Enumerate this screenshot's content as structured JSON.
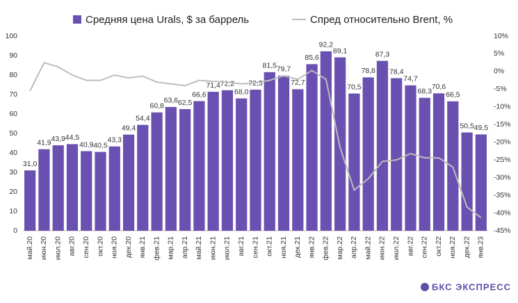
{
  "chart_data": {
    "type": "bar",
    "brand": "БКС ЭКСПРЕСС",
    "categories": [
      "май.20",
      "июн.20",
      "июл.20",
      "авг.20",
      "сен.20",
      "окт.20",
      "ноя.20",
      "дек.20",
      "янв.21",
      "фев.21",
      "мар.21",
      "апр.21",
      "май.21",
      "июн.21",
      "июл.21",
      "авг.21",
      "сен.21",
      "окт.21",
      "ноя.21",
      "дек.21",
      "янв.22",
      "фев.22",
      "мар.22",
      "апр.22",
      "май.22",
      "июн.22",
      "июл.22",
      "авг.22",
      "сен.22",
      "окт.22",
      "ноя.22",
      "дек.22",
      "янв.23"
    ],
    "series": [
      {
        "name": "Средняя цена Urals, $ за баррель",
        "type": "bar",
        "color": "#6a50b0",
        "values": [
          31.0,
          41.9,
          43.9,
          44.5,
          40.9,
          40.5,
          43.3,
          49.4,
          54.4,
          60.8,
          63.6,
          62.5,
          66.6,
          71.4,
          72.2,
          68.0,
          72.5,
          81.5,
          79.7,
          72.7,
          85.6,
          92.2,
          89.1,
          70.5,
          78.8,
          87.3,
          78.4,
          74.7,
          68.3,
          70.6,
          66.5,
          50.5,
          49.5
        ],
        "value_labels": [
          "31,0",
          "41,9",
          "43,9",
          "44,5",
          "40,9",
          "40,5",
          "43,3",
          "49,4",
          "54,4",
          "60,8",
          "63,6",
          "62,5",
          "66,6",
          "71,4",
          "72,2",
          "68,0",
          "72,5",
          "81,5",
          "79,7",
          "72,7",
          "85,6",
          "92,2",
          "89,1",
          "70,5",
          "78,8",
          "87,3",
          "78,4",
          "74,7",
          "68,3",
          "70,6",
          "66,5",
          "50,5",
          "49,5"
        ]
      },
      {
        "name": "Спред относительно Brent, %",
        "type": "line",
        "color": "#bdbdbd",
        "axis": "y2",
        "values": [
          -5.5,
          2.5,
          1.3,
          -1,
          -2.5,
          -2.5,
          -1,
          -1.8,
          -1.3,
          -3,
          -3.5,
          -4,
          -2.5,
          -2.8,
          -3,
          -3.5,
          -3.2,
          -2.5,
          -1.2,
          -2.2,
          0.3,
          -2.2,
          -21.5,
          -33.5,
          -30.3,
          -25.4,
          -25,
          -23.2,
          -24.4,
          -24.4,
          -27,
          -38.3,
          -41.3
        ]
      }
    ],
    "ylim": [
      0,
      100
    ],
    "yticks": [
      0,
      10,
      20,
      30,
      40,
      50,
      60,
      70,
      80,
      90,
      100
    ],
    "y2lim": [
      -45,
      10
    ],
    "y2ticks": [
      {
        "value": 10,
        "label": "10%"
      },
      {
        "value": 5,
        "label": "5%"
      },
      {
        "value": 0,
        "label": "0%"
      },
      {
        "value": -5,
        "label": "-5%"
      },
      {
        "value": -10,
        "label": "-10%"
      },
      {
        "value": -15,
        "label": "-15%"
      },
      {
        "value": -20,
        "label": "-20%"
      },
      {
        "value": -25,
        "label": "-25%"
      },
      {
        "value": -30,
        "label": "-30%"
      },
      {
        "value": -35,
        "label": "-35%"
      },
      {
        "value": -40,
        "label": "-40%"
      },
      {
        "value": -45,
        "label": "-45%"
      }
    ],
    "grid": false
  }
}
